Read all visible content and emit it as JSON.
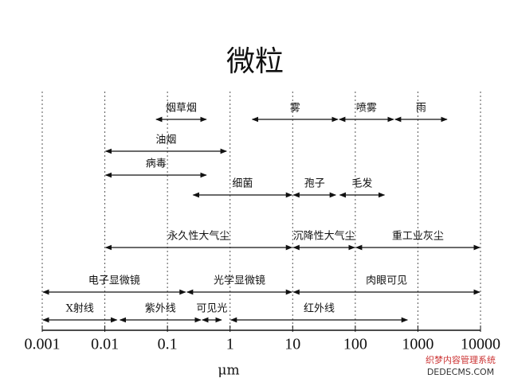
{
  "chart_data": {
    "type": "range",
    "title": "微粒",
    "x_label": "μm",
    "xscale": "log",
    "xlim": [
      0.001,
      10000
    ],
    "xticks": [
      0.001,
      0.01,
      0.1,
      1,
      10,
      100,
      1000,
      10000
    ],
    "grid": true,
    "color": "#111111",
    "ranges": [
      {
        "name": "烟草烟",
        "start": 0.064,
        "end": 0.43,
        "row": 0
      },
      {
        "name": "雾",
        "start": 2.2,
        "end": 54,
        "row": 0
      },
      {
        "name": "喷雾",
        "start": 54,
        "end": 420,
        "row": 0
      },
      {
        "name": "雨",
        "start": 420,
        "end": 3000,
        "row": 0
      },
      {
        "name": "油烟",
        "start": 0.01,
        "end": 0.9,
        "row": 1
      },
      {
        "name": "病毒",
        "start": 0.01,
        "end": 0.43,
        "row": 2
      },
      {
        "name": "细菌",
        "start": 0.25,
        "end": 10,
        "row": 3
      },
      {
        "name": "孢子",
        "start": 10,
        "end": 50,
        "row": 3
      },
      {
        "name": "毛发",
        "start": 55,
        "end": 300,
        "row": 3
      },
      {
        "name": "永久性大气尘",
        "start": 0.01,
        "end": 10,
        "row": 4
      },
      {
        "name": "沉降性大气尘",
        "start": 10,
        "end": 100,
        "row": 4
      },
      {
        "name": "重工业灰尘",
        "start": 100,
        "end": 10000,
        "row": 4
      },
      {
        "name": "电子显微镜",
        "start": 0.001,
        "end": 0.2,
        "row": 5
      },
      {
        "name": "光学显微镜",
        "start": 0.2,
        "end": 10,
        "row": 5
      },
      {
        "name": "肉眼可见",
        "start": 10,
        "end": 10000,
        "row": 5
      },
      {
        "name": "X射线",
        "start": 0.001,
        "end": 0.016,
        "row": 6
      },
      {
        "name": "紫外线",
        "start": 0.017,
        "end": 0.35,
        "row": 6
      },
      {
        "name": "可见光",
        "start": 0.35,
        "end": 0.75,
        "row": 6
      },
      {
        "name": "红外线",
        "start": 1,
        "end": 700,
        "row": 6
      }
    ],
    "watermark": [
      "织梦内容管理系统",
      "DEDECMS.COM"
    ]
  }
}
